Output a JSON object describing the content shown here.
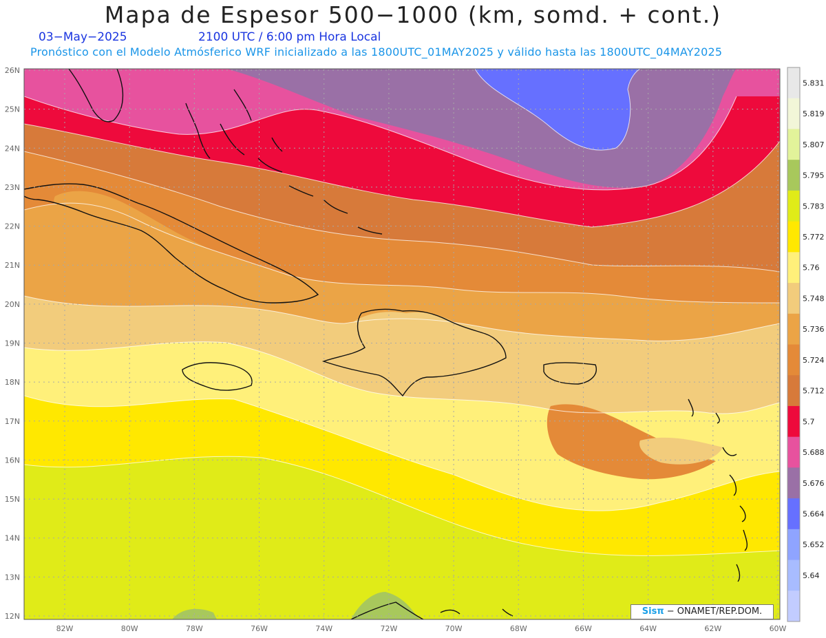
{
  "title": "Mapa de Espesor 500−1000 (km, somd. + cont.)",
  "date": "03−May−2025",
  "time": "2100 UTC / 6:00 pm Hora Local",
  "subtitle": "Pronóstico con el Modelo Atmósferico WRF inicializado a las 1800UTC_01MAY2025 y válido hasta las  1800UTC_04MAY2025",
  "credit": {
    "sis": "Sisπ",
    "org": " − ONAMET/REP.DOM."
  },
  "lat_labels": [
    "26N",
    "25N",
    "24N",
    "23N",
    "22N",
    "21N",
    "20N",
    "19N",
    "18N",
    "17N",
    "16N",
    "15N",
    "14N",
    "13N",
    "12N"
  ],
  "lon_labels": [
    "82W",
    "80W",
    "78W",
    "76W",
    "74W",
    "72W",
    "70W",
    "68W",
    "66W",
    "64W",
    "62W",
    "60W"
  ],
  "legend": {
    "labels": [
      "5.831",
      "5.819",
      "5.807",
      "5.795",
      "5.783",
      "5.772",
      "5.76",
      "5.748",
      "5.736",
      "5.724",
      "5.712",
      "5.7",
      "5.688",
      "5.676",
      "5.664",
      "5.652",
      "5.64"
    ],
    "colors": [
      "#e8e8e8",
      "#f2f6d8",
      "#e2f39a",
      "#a8c85c",
      "#e0eb18",
      "#ffe800",
      "#fff07a",
      "#f2cc7c",
      "#eba446",
      "#e48a38",
      "#d77a3a",
      "#ee0a3c",
      "#e7529e",
      "#9a70a6",
      "#6670ff",
      "#8fa4ff",
      "#a8bcff",
      "#c2ccff"
    ]
  },
  "map_colors": {
    "c5664": "#6670ff",
    "c5676": "#9a70a6",
    "c5688": "#e7529e",
    "c5700": "#ee0a3c",
    "c5712": "#d77a3a",
    "c5724": "#e48a38",
    "c5736": "#eba446",
    "c5748": "#f2cc7c",
    "c5760": "#fff07a",
    "c5772": "#ffe800",
    "c5783": "#e0eb18",
    "c5795": "#a8c85c"
  }
}
